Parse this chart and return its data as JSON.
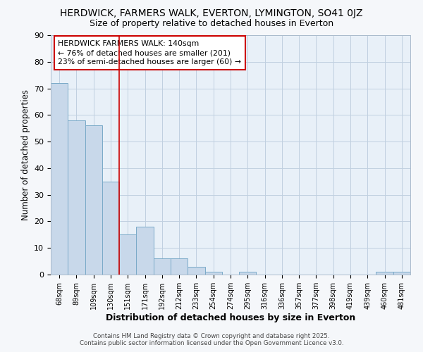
{
  "title1": "HERDWICK, FARMERS WALK, EVERTON, LYMINGTON, SO41 0JZ",
  "title2": "Size of property relative to detached houses in Everton",
  "xlabel": "Distribution of detached houses by size in Everton",
  "ylabel": "Number of detached properties",
  "bar_labels": [
    "68sqm",
    "89sqm",
    "109sqm",
    "130sqm",
    "151sqm",
    "171sqm",
    "192sqm",
    "212sqm",
    "233sqm",
    "254sqm",
    "274sqm",
    "295sqm",
    "316sqm",
    "336sqm",
    "357sqm",
    "377sqm",
    "398sqm",
    "419sqm",
    "439sqm",
    "460sqm",
    "481sqm"
  ],
  "bar_values": [
    72,
    58,
    56,
    35,
    15,
    18,
    6,
    6,
    3,
    1,
    0,
    1,
    0,
    0,
    0,
    0,
    0,
    0,
    0,
    1,
    1
  ],
  "bar_color": "#c8d8ea",
  "bar_edge_color": "#7aaac8",
  "red_line_x": 3.5,
  "annotation_lines": [
    "HERDWICK FARMERS WALK: 140sqm",
    "← 76% of detached houses are smaller (201)",
    "23% of semi-detached houses are larger (60) →"
  ],
  "annotation_box_facecolor": "white",
  "annotation_box_edgecolor": "#cc0000",
  "red_line_color": "#cc0000",
  "ylim": [
    0,
    90
  ],
  "yticks": [
    0,
    10,
    20,
    30,
    40,
    50,
    60,
    70,
    80,
    90
  ],
  "grid_color": "#c0d0e0",
  "plot_bg_color": "#e8f0f8",
  "fig_bg_color": "#f5f7fa",
  "footer1": "Contains HM Land Registry data © Crown copyright and database right 2025.",
  "footer2": "Contains public sector information licensed under the Open Government Licence v3.0."
}
